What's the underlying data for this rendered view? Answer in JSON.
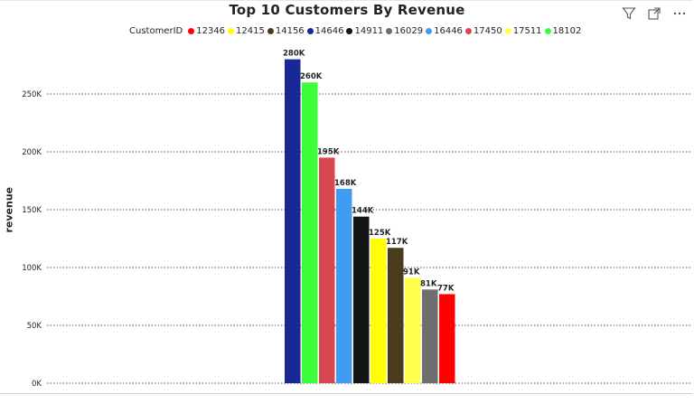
{
  "toolbar": {
    "filter_icon": "filter-icon",
    "focus_icon": "focus-mode-icon",
    "more_label": "···"
  },
  "legend": {
    "title": "CustomerID"
  },
  "chart_data": {
    "type": "bar",
    "title": "Top 10 Customers By Revenue",
    "xlabel": "",
    "ylabel": "revenue",
    "ylim": [
      0,
      280000
    ],
    "yticks": [
      0,
      50000,
      100000,
      150000,
      200000,
      250000
    ],
    "ytick_labels": [
      "0K",
      "50K",
      "100K",
      "150K",
      "200K",
      "250K"
    ],
    "grid": true,
    "legend_position": "top",
    "legend_entries": [
      {
        "name": "12346",
        "color": "#ff0000"
      },
      {
        "name": "12415",
        "color": "#ffff00"
      },
      {
        "name": "14156",
        "color": "#4a3c1b"
      },
      {
        "name": "14646",
        "color": "#1a2896"
      },
      {
        "name": "14911",
        "color": "#141414"
      },
      {
        "name": "16029",
        "color": "#6e6e6e"
      },
      {
        "name": "16446",
        "color": "#409cf0"
      },
      {
        "name": "17450",
        "color": "#d84650"
      },
      {
        "name": "17511",
        "color": "#ffff4c"
      },
      {
        "name": "18102",
        "color": "#3cff3c"
      }
    ],
    "categories": [
      "14646",
      "18102",
      "17450",
      "16446",
      "14911",
      "12415",
      "14156",
      "17511",
      "16029",
      "12346"
    ],
    "values": [
      280000,
      260000,
      195000,
      168000,
      144000,
      125000,
      117000,
      91000,
      81000,
      77000
    ],
    "data_labels": [
      "280K",
      "260K",
      "195K",
      "168K",
      "144K",
      "125K",
      "117K",
      "91K",
      "81K",
      "77K"
    ],
    "colors": [
      "#1a2896",
      "#3cff3c",
      "#d84650",
      "#409cf0",
      "#141414",
      "#ffff00",
      "#4a3c1b",
      "#ffff4c",
      "#6e6e6e",
      "#ff0000"
    ]
  }
}
